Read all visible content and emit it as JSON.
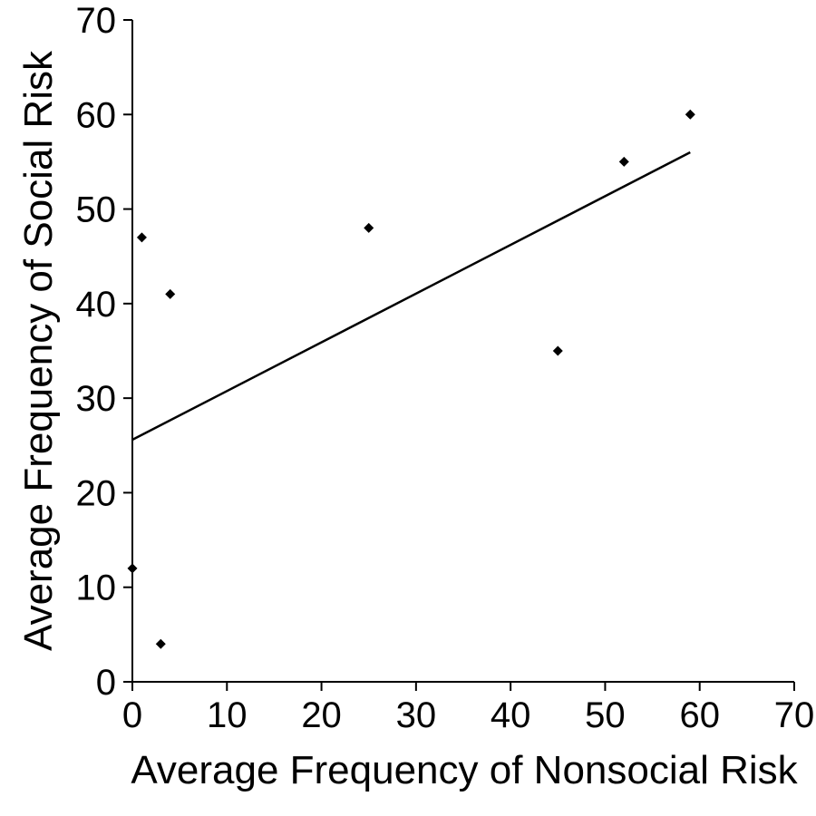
{
  "chart_data": {
    "type": "scatter",
    "title": "",
    "xlabel": "Average Frequency of Nonsocial Risk",
    "ylabel": "Average Frequency of Social Risk",
    "xlim": [
      0,
      70
    ],
    "ylim": [
      0,
      70
    ],
    "xticks": [
      0,
      10,
      20,
      30,
      40,
      50,
      60,
      70
    ],
    "yticks": [
      0,
      10,
      20,
      30,
      40,
      50,
      60,
      70
    ],
    "grid": false,
    "marker": "diamond",
    "series": [
      {
        "points": [
          {
            "x": 0,
            "y": 12
          },
          {
            "x": 1,
            "y": 47
          },
          {
            "x": 3,
            "y": 4
          },
          {
            "x": 4,
            "y": 41
          },
          {
            "x": 25,
            "y": 48
          },
          {
            "x": 45,
            "y": 35
          },
          {
            "x": 52,
            "y": 55
          },
          {
            "x": 59,
            "y": 60
          }
        ]
      }
    ],
    "trendline": {
      "x": [
        0,
        59
      ],
      "y": [
        25.6,
        56
      ]
    }
  }
}
